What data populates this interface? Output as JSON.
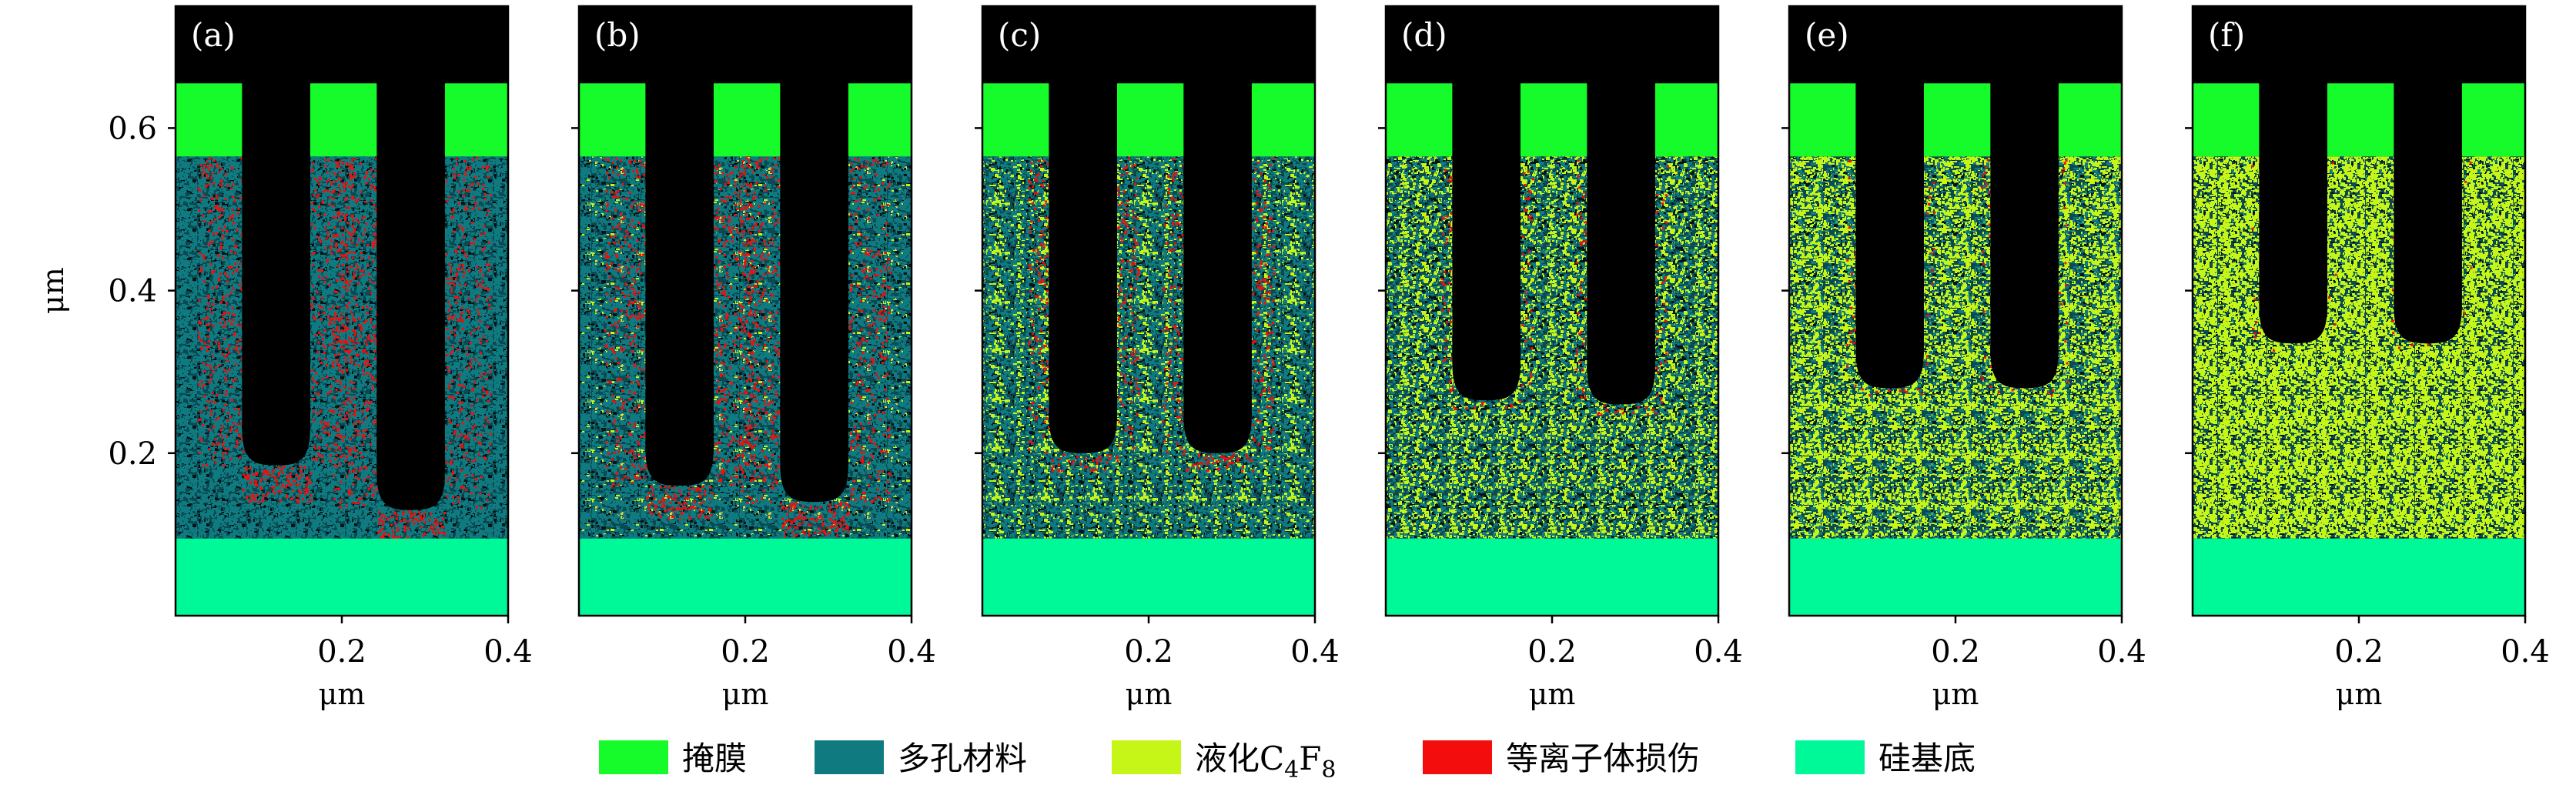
{
  "colors": {
    "mask": "#16fb2a",
    "porous": "#0f7b80",
    "liquid_c4f8": "#c6f617",
    "plasma_damage": "#f40d0d",
    "substrate": "#00f998",
    "void": "#000000",
    "yellow_flecks": "#e3d436"
  },
  "legend": [
    {
      "key": "mask",
      "label": "掩膜"
    },
    {
      "key": "porous",
      "label": "多孔材料"
    },
    {
      "key": "liquid_c4f8",
      "label": "液化C",
      "sub1": "4",
      "mid": "F",
      "sub2": "8"
    },
    {
      "key": "plasma_damage",
      "label": "等离子体损伤"
    },
    {
      "key": "substrate",
      "label": "硅基底"
    }
  ],
  "chart_data": {
    "type": "heatmap",
    "xlabel": "μm",
    "ylabel": "μm",
    "xlim": [
      0,
      0.4
    ],
    "ylim": [
      0,
      0.75
    ],
    "x_ticks": [
      {
        "value": 0.2,
        "label": "0.2"
      },
      {
        "value": 0.4,
        "label": "0.4"
      }
    ],
    "y_ticks": [
      {
        "value": 0.2,
        "label": "0.2"
      },
      {
        "value": 0.4,
        "label": "0.4"
      },
      {
        "value": 0.6,
        "label": "0.6"
      }
    ],
    "layers": {
      "substrate": [
        0,
        0.095
      ],
      "porous": [
        0.095,
        0.565
      ],
      "mask": [
        0.565,
        0.655
      ]
    },
    "mask_blocks": [
      [
        0,
        0.08
      ],
      [
        0.162,
        0.242
      ],
      [
        0.324,
        0.4
      ]
    ],
    "panels": [
      {
        "label": "(a)",
        "liquid_fraction": 0.0,
        "damage_fraction": 0.55,
        "flecks": 0.0,
        "trenches": [
          {
            "left": 0.08,
            "right": 0.162,
            "bottom": 0.185
          },
          {
            "left": 0.242,
            "right": 0.324,
            "bottom": 0.13
          }
        ]
      },
      {
        "label": "(b)",
        "liquid_fraction": 0.03,
        "damage_fraction": 0.5,
        "flecks": 0.03,
        "trenches": [
          {
            "left": 0.08,
            "right": 0.162,
            "bottom": 0.16
          },
          {
            "left": 0.242,
            "right": 0.324,
            "bottom": 0.14
          }
        ]
      },
      {
        "label": "(c)",
        "liquid_fraction": 0.22,
        "damage_fraction": 0.2,
        "flecks": 0.0,
        "trenches": [
          {
            "left": 0.08,
            "right": 0.162,
            "bottom": 0.2
          },
          {
            "left": 0.242,
            "right": 0.324,
            "bottom": 0.2
          }
        ]
      },
      {
        "label": "(d)",
        "liquid_fraction": 0.45,
        "damage_fraction": 0.06,
        "flecks": 0.0,
        "trenches": [
          {
            "left": 0.08,
            "right": 0.162,
            "bottom": 0.265
          },
          {
            "left": 0.242,
            "right": 0.324,
            "bottom": 0.26
          }
        ]
      },
      {
        "label": "(e)",
        "liquid_fraction": 0.6,
        "damage_fraction": 0.03,
        "flecks": 0.0,
        "trenches": [
          {
            "left": 0.08,
            "right": 0.162,
            "bottom": 0.28
          },
          {
            "left": 0.242,
            "right": 0.324,
            "bottom": 0.28
          }
        ]
      },
      {
        "label": "(f)",
        "liquid_fraction": 0.85,
        "damage_fraction": 0.01,
        "flecks": 0.0,
        "trenches": [
          {
            "left": 0.08,
            "right": 0.162,
            "bottom": 0.335
          },
          {
            "left": 0.242,
            "right": 0.324,
            "bottom": 0.335
          }
        ]
      }
    ]
  }
}
